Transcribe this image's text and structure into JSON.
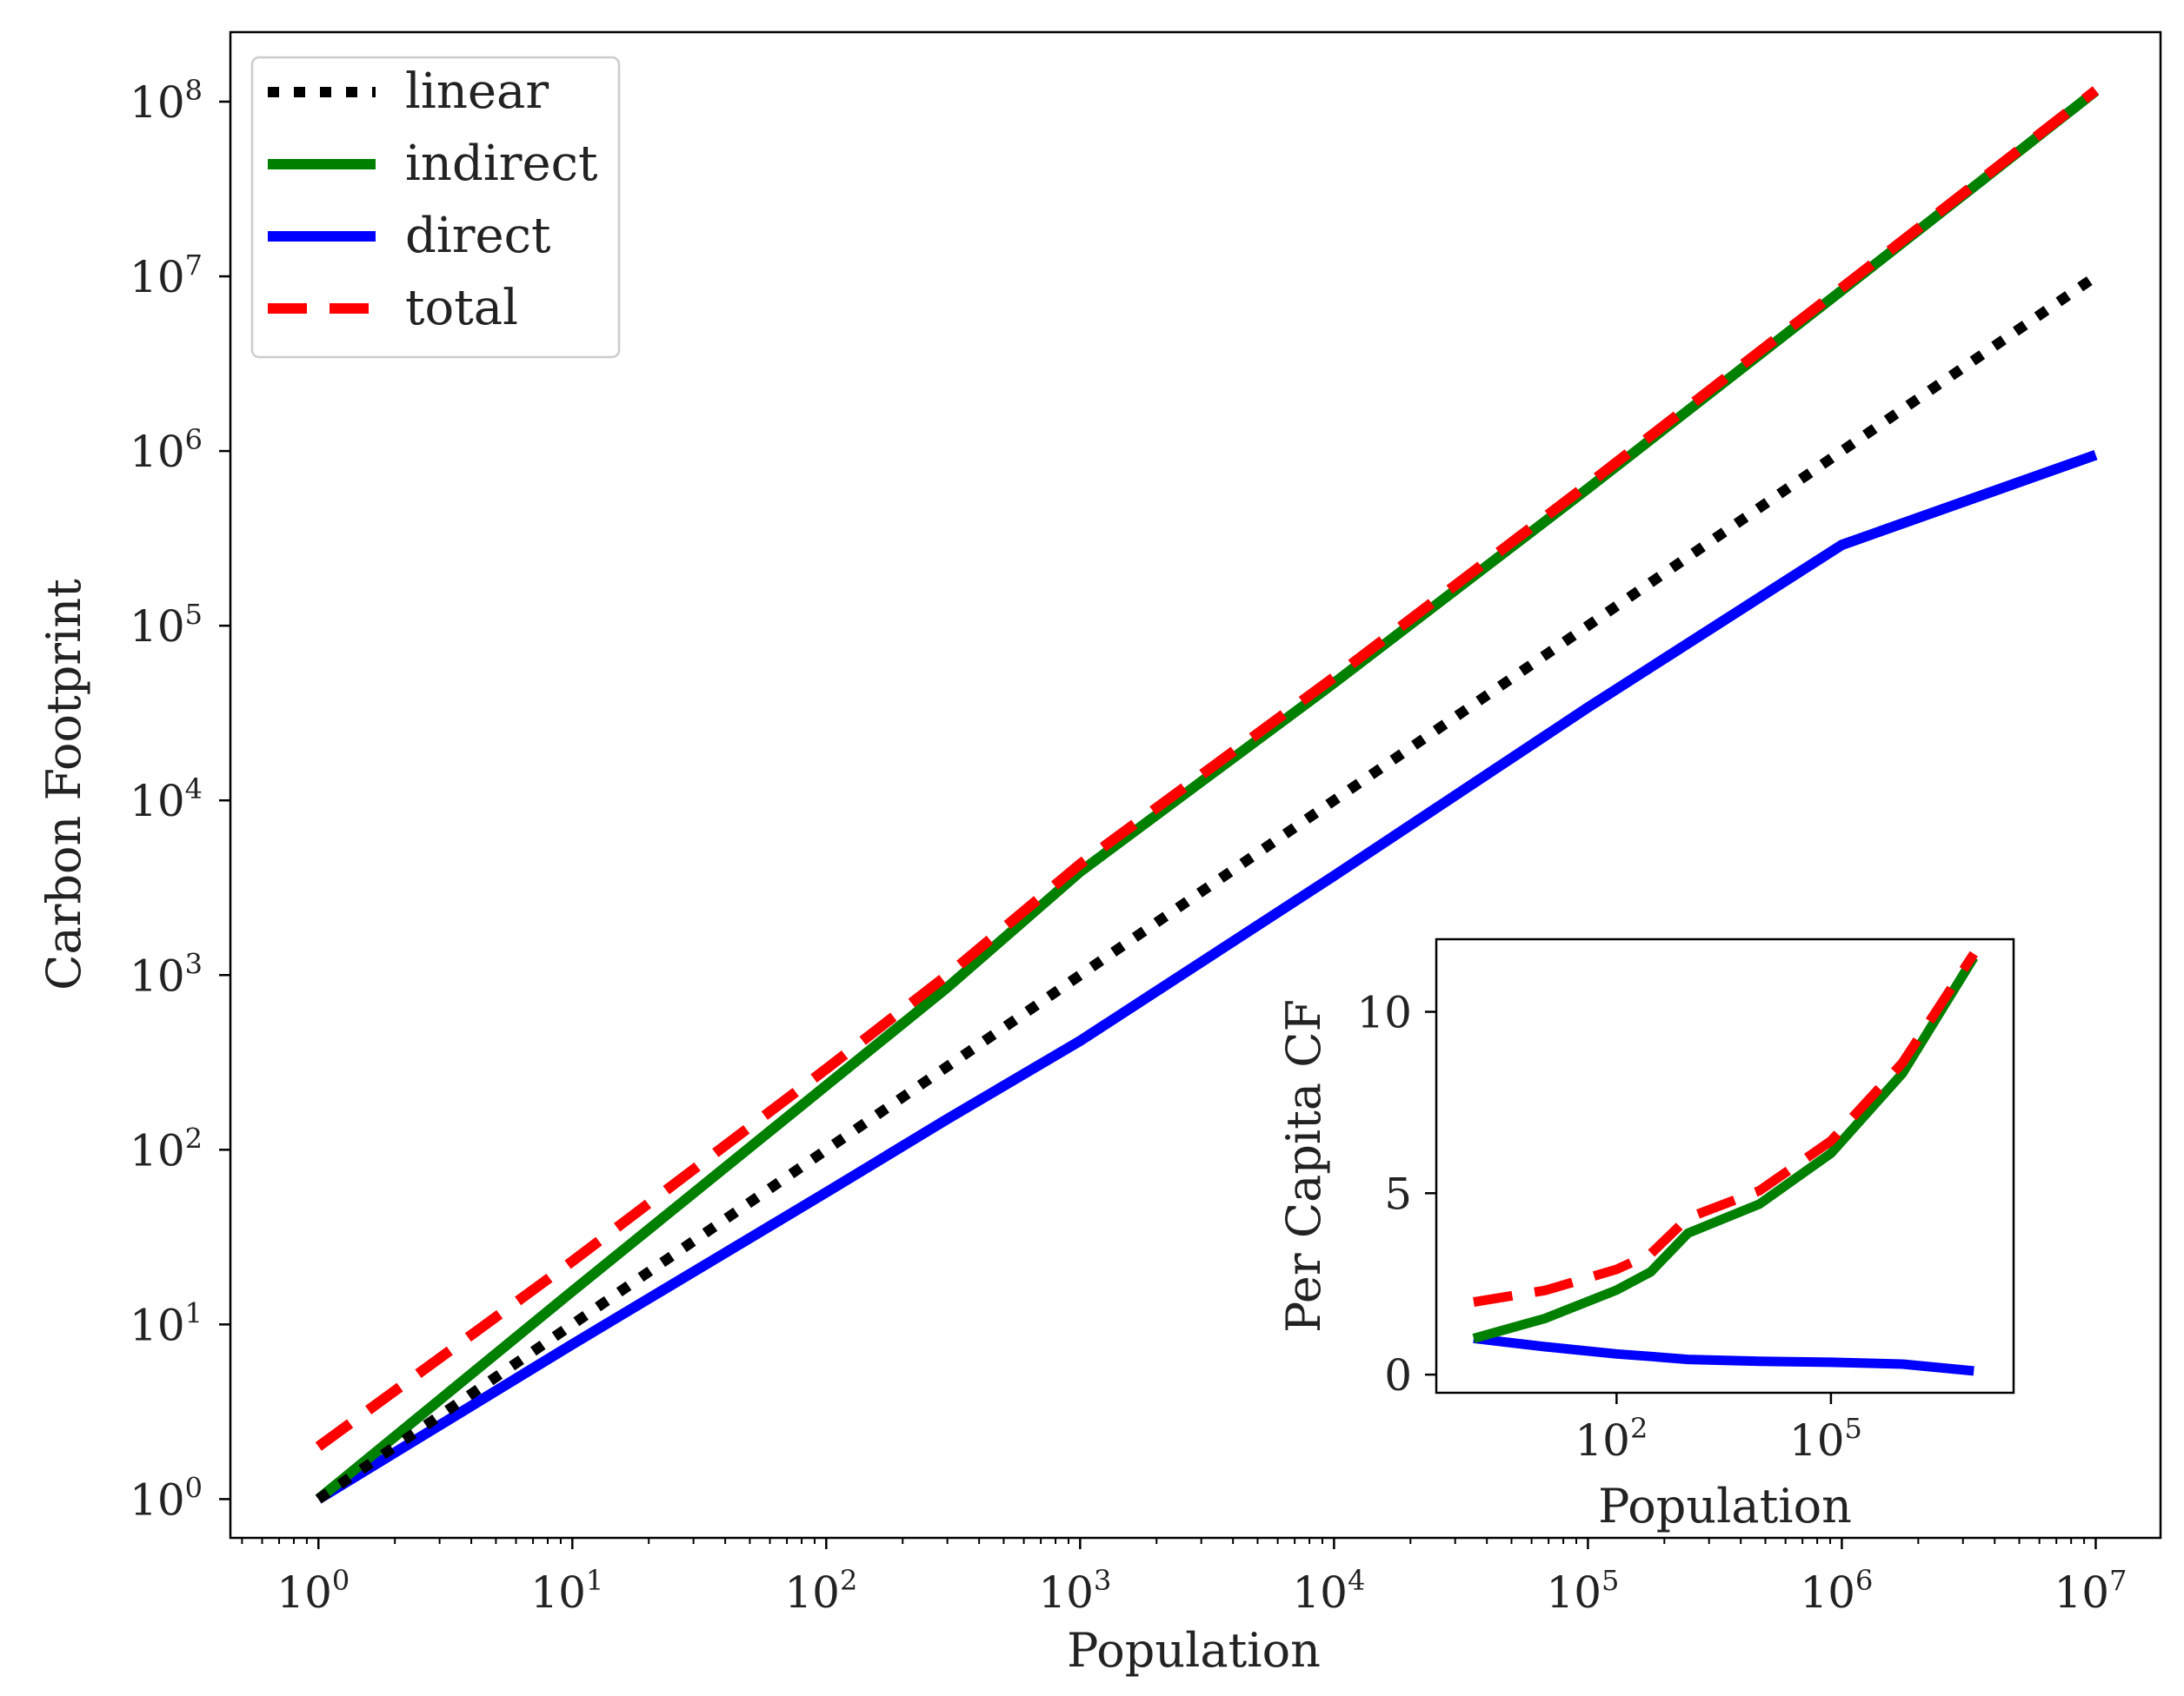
{
  "colors": {
    "linear": "#000000",
    "indirect": "#008000",
    "direct": "#0000ff",
    "total": "#ff0000",
    "axes": "#000000",
    "text": "#222222"
  },
  "chart_data": [
    {
      "type": "line",
      "title": "",
      "xlabel": "Population",
      "ylabel": "Carbon Footprint",
      "xscale": "log",
      "yscale": "log",
      "xlim": [
        0.45,
        18000000
      ],
      "ylim": [
        0.6,
        250000000
      ],
      "x_ticks": [
        {
          "base": "10",
          "exp": "0"
        },
        {
          "base": "10",
          "exp": "1"
        },
        {
          "base": "10",
          "exp": "2"
        },
        {
          "base": "10",
          "exp": "3"
        },
        {
          "base": "10",
          "exp": "4"
        },
        {
          "base": "10",
          "exp": "5"
        },
        {
          "base": "10",
          "exp": "6"
        },
        {
          "base": "10",
          "exp": "7"
        }
      ],
      "y_ticks": [
        {
          "base": "10",
          "exp": "0"
        },
        {
          "base": "10",
          "exp": "1"
        },
        {
          "base": "10",
          "exp": "2"
        },
        {
          "base": "10",
          "exp": "3"
        },
        {
          "base": "10",
          "exp": "4"
        },
        {
          "base": "10",
          "exp": "5"
        },
        {
          "base": "10",
          "exp": "6"
        },
        {
          "base": "10",
          "exp": "7"
        },
        {
          "base": "10",
          "exp": "8"
        }
      ],
      "legend_position": "top-left",
      "series": [
        {
          "name": "linear",
          "style": "dotted",
          "x": [
            1,
            10000000
          ],
          "y": [
            1,
            10000000
          ]
        },
        {
          "name": "indirect",
          "style": "solid",
          "x": [
            1,
            10,
            100,
            300,
            1000,
            10000,
            100000,
            1000000,
            10000000
          ],
          "y": [
            1,
            15.5,
            233,
            850,
            3900,
            47000,
            610000,
            8300000,
            115000000
          ]
        },
        {
          "name": "direct",
          "style": "solid",
          "x": [
            1,
            10,
            100,
            300,
            1000,
            10000,
            100000,
            1000000,
            10000000
          ],
          "y": [
            1,
            7.7,
            57,
            150,
            420,
            3700,
            34000,
            290000,
            950000
          ]
        },
        {
          "name": "total",
          "style": "dashed",
          "x": [
            1,
            10,
            100,
            300,
            1000,
            10000,
            100000,
            1000000,
            10000000
          ],
          "y": [
            2,
            23,
            290,
            1000,
            4320,
            50700,
            644000,
            8590000,
            116000000
          ]
        }
      ]
    },
    {
      "type": "line",
      "title": "",
      "xlabel": "Population",
      "ylabel": "Per Capita CF",
      "xscale": "log",
      "yscale": "linear",
      "xlim": [
        0.3,
        36000000
      ],
      "ylim": [
        -0.5,
        12
      ],
      "x_ticks": [
        {
          "base": "10",
          "exp": "2"
        },
        {
          "base": "10",
          "exp": "5"
        }
      ],
      "y_ticks": [
        "0",
        "5",
        "10"
      ],
      "series": [
        {
          "name": "indirect",
          "style": "solid",
          "x": [
            1,
            10,
            100,
            300,
            1000,
            10000,
            100000,
            1000000,
            10000000
          ],
          "y": [
            1.0,
            1.55,
            2.33,
            2.83,
            3.9,
            4.7,
            6.1,
            8.3,
            11.5
          ]
        },
        {
          "name": "direct",
          "style": "solid",
          "x": [
            1,
            10,
            100,
            300,
            1000,
            10000,
            100000,
            1000000,
            10000000
          ],
          "y": [
            1.0,
            0.77,
            0.57,
            0.5,
            0.42,
            0.37,
            0.34,
            0.29,
            0.1
          ]
        },
        {
          "name": "total",
          "style": "dashed",
          "x": [
            1,
            10,
            100,
            300,
            1000,
            10000,
            100000,
            1000000,
            10000000
          ],
          "y": [
            2.0,
            2.32,
            2.9,
            3.33,
            4.32,
            5.07,
            6.44,
            8.59,
            11.6
          ]
        }
      ]
    }
  ]
}
